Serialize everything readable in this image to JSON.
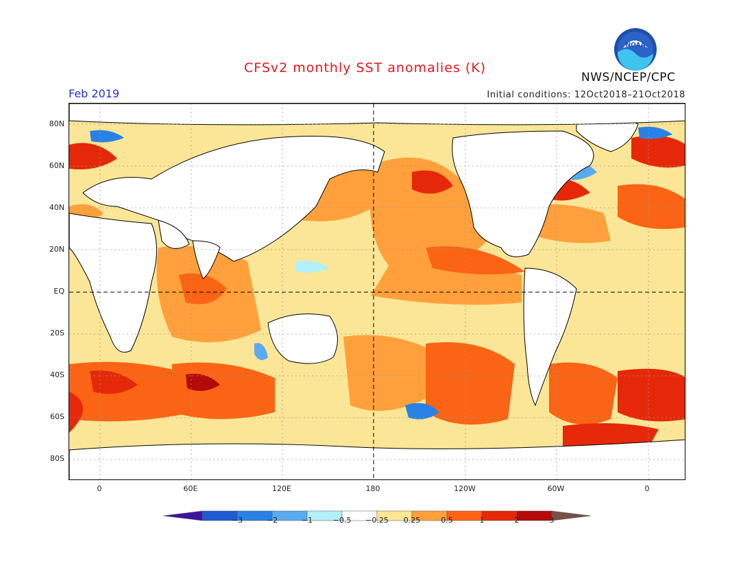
{
  "title": "CFSv2 monthly SST anomalies (K)",
  "agency": "NWS/NCEP/CPC",
  "logo_text": "NOAA",
  "month": "Feb 2019",
  "initial_conditions": "Initial conditions: 12Oct2018–21Oct2018",
  "lat_labels": [
    "80N",
    "60N",
    "40N",
    "20N",
    "EQ",
    "20S",
    "40S",
    "60S",
    "80S"
  ],
  "lon_labels": [
    "0",
    "60E",
    "120E",
    "180",
    "120W",
    "60W",
    "0"
  ],
  "colorbar": {
    "labels": [
      "−3",
      "−2",
      "−1",
      "−0.5",
      "−0.25",
      "0.25",
      "0.5",
      "1",
      "2",
      "3"
    ],
    "colors": [
      "#3c14a0",
      "#1e5ad2",
      "#2882e6",
      "#5aaaf0",
      "#b4f0fa",
      "#ffffff",
      "#fae696",
      "#ffa03c",
      "#fa6414",
      "#e6280a",
      "#b40a0a",
      "#785046"
    ]
  },
  "colors": {
    "title": "#e8141c",
    "month": "#2030d8",
    "land": "#ffffff",
    "ocean_warm": "#ffa03c",
    "ocean_hot": "#e6280a"
  }
}
